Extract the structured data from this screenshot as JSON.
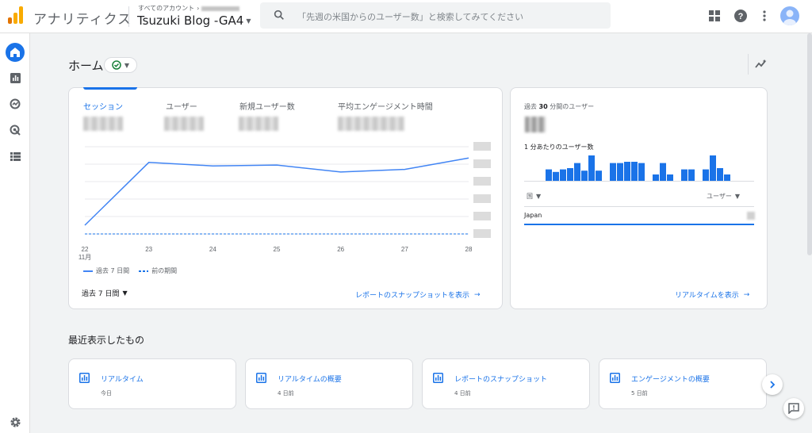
{
  "app": {
    "name": "アナリティクス",
    "breadcrumb_label": "すべてのアカウント",
    "property_name": "Tsuzuki Blog -GA4"
  },
  "search": {
    "placeholder": "「先週の米国からのユーザー数」と検索してみてください"
  },
  "page": {
    "title": "ホーム"
  },
  "metrics": {
    "tabs": [
      {
        "label": "セッション",
        "active": true
      },
      {
        "label": "ユーザー",
        "active": false
      },
      {
        "label": "新規ユーザー数",
        "active": false
      },
      {
        "label": "平均エンゲージメント時間",
        "active": false
      }
    ]
  },
  "chart_data": {
    "type": "line",
    "categories": [
      "22",
      "23",
      "24",
      "25",
      "26",
      "27",
      "28"
    ],
    "x_sublabel": "11月",
    "series": [
      {
        "name": "過去 7 日間",
        "style": "solid",
        "color": "#4285f4",
        "values": [
          0.1,
          0.82,
          0.78,
          0.79,
          0.71,
          0.74,
          0.87
        ]
      },
      {
        "name": "前の期間",
        "style": "dashed",
        "color": "#1a73e8",
        "values": [
          0,
          0,
          0,
          0,
          0,
          0,
          0
        ]
      }
    ],
    "ylim": [
      0,
      1
    ],
    "grid": true,
    "legend": "bottom-left"
  },
  "main_card": {
    "period_label": "過去 7 日間",
    "snapshot_link": "レポートのスナップショットを表示"
  },
  "realtime": {
    "title_prefix": "過去",
    "title_num": "30",
    "title_suffix": "分間のユーザー",
    "per_minute_label": "1 分あたりのユーザー数",
    "bars": [
      0,
      0,
      0,
      0.45,
      0.35,
      0.45,
      0.5,
      0.7,
      0.4,
      1,
      0.4,
      0,
      0.7,
      0.7,
      0.75,
      0.75,
      0.7,
      0,
      0.25,
      0.7,
      0.25,
      0,
      0.45,
      0.45,
      0,
      0.45,
      1,
      0.5,
      0.25,
      0
    ],
    "col_country": "国",
    "col_users": "ユーザー",
    "rows": [
      {
        "country": "Japan"
      }
    ],
    "link": "リアルタイムを表示"
  },
  "recent": {
    "title": "最近表示したもの",
    "items": [
      {
        "title": "リアルタイム",
        "time": "今日"
      },
      {
        "title": "リアルタイムの概要",
        "time": "4 日前"
      },
      {
        "title": "レポートのスナップショット",
        "time": "4 日前"
      },
      {
        "title": "エンゲージメントの概要",
        "time": "5 日前"
      }
    ]
  },
  "colors": {
    "accent": "#1a73e8",
    "logo_orange": "#f9ab00",
    "logo_dark_orange": "#e37400"
  },
  "icons": [
    "search-icon",
    "apps-icon",
    "help-icon",
    "more-vert-icon",
    "home-icon",
    "reports-icon",
    "explore-icon",
    "advertising-icon",
    "configure-icon",
    "settings-icon",
    "insights-icon",
    "feedback-icon"
  ]
}
